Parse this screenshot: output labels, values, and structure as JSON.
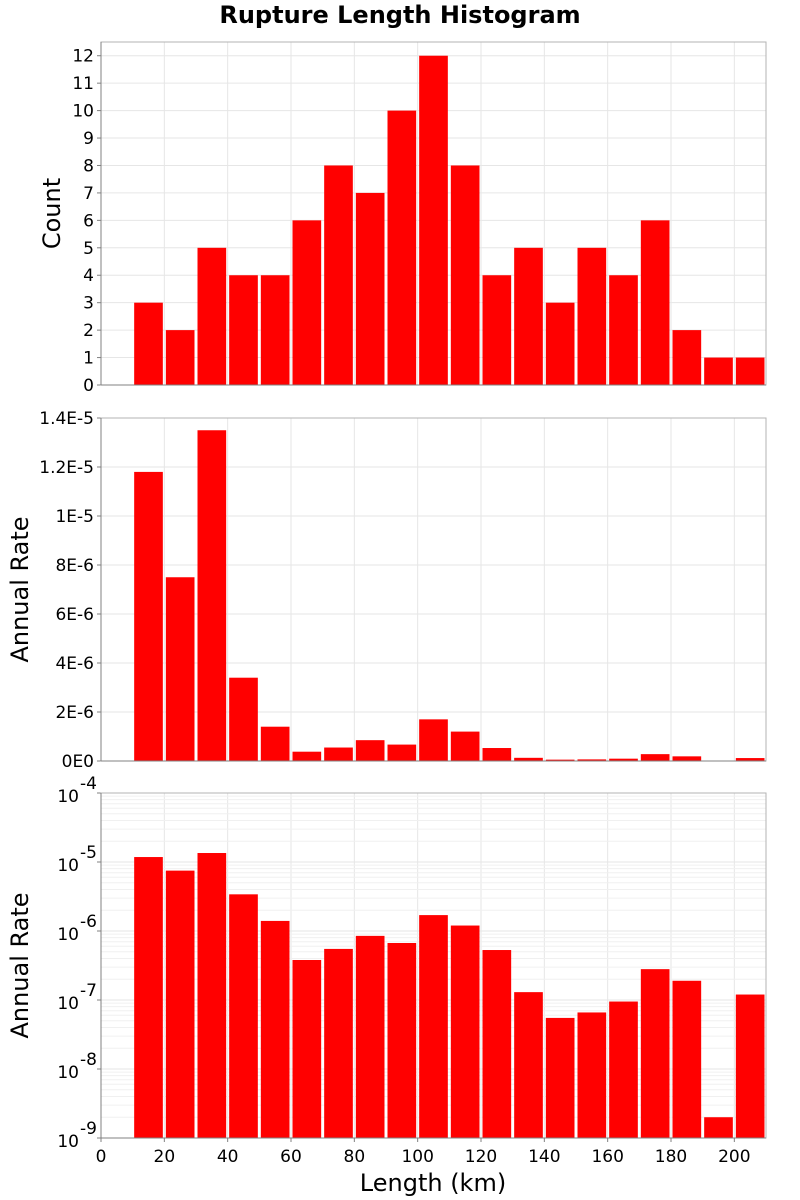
{
  "chart_data": [
    {
      "type": "bar",
      "title": "Rupture Length Histogram",
      "xlabel": "",
      "ylabel": "Count",
      "bin_width": 10,
      "x": [
        15,
        25,
        35,
        45,
        55,
        65,
        75,
        85,
        95,
        105,
        115,
        125,
        135,
        145,
        155,
        165,
        175,
        185,
        195,
        205
      ],
      "values": [
        3,
        2,
        5,
        4,
        4,
        6,
        8,
        7,
        10,
        12,
        8,
        4,
        5,
        3,
        5,
        4,
        6,
        2,
        1,
        1
      ],
      "xlim": [
        0,
        210
      ],
      "ylim": [
        0,
        12.5
      ],
      "yticks": [
        0,
        1,
        2,
        3,
        4,
        5,
        6,
        7,
        8,
        9,
        10,
        11,
        12
      ],
      "ytick_labels": [
        "0",
        "1",
        "2",
        "3",
        "4",
        "5",
        "6",
        "7",
        "8",
        "9",
        "10",
        "11",
        "12"
      ],
      "yscale": "linear",
      "grid": true,
      "color": "#ff0000"
    },
    {
      "type": "bar",
      "xlabel": "",
      "ylabel": "Annual Rate",
      "bin_width": 10,
      "x": [
        15,
        25,
        35,
        45,
        55,
        65,
        75,
        85,
        95,
        105,
        115,
        125,
        135,
        145,
        155,
        165,
        175,
        185,
        195,
        205
      ],
      "values": [
        1.18e-05,
        7.5e-06,
        1.35e-05,
        3.4e-06,
        1.4e-06,
        3.8e-07,
        5.5e-07,
        8.5e-07,
        6.7e-07,
        1.7e-06,
        1.2e-06,
        5.3e-07,
        1.3e-07,
        5.5e-08,
        6.6e-08,
        9.5e-08,
        2.8e-07,
        1.9e-07,
        2e-09,
        1.2e-07
      ],
      "xlim": [
        0,
        210
      ],
      "ylim": [
        0,
        1.4e-05
      ],
      "yticks": [
        0,
        2e-06,
        4e-06,
        6e-06,
        8e-06,
        1e-05,
        1.2e-05,
        1.4e-05
      ],
      "ytick_labels": [
        "0E0",
        "2E-6",
        "4E-6",
        "6E-6",
        "8E-6",
        "1E-5",
        "1.2E-5",
        "1.4E-5"
      ],
      "yscale": "linear",
      "grid": true,
      "color": "#ff0000"
    },
    {
      "type": "bar",
      "xlabel": "Length (km)",
      "ylabel": "Annual Rate",
      "bin_width": 10,
      "x": [
        15,
        25,
        35,
        45,
        55,
        65,
        75,
        85,
        95,
        105,
        115,
        125,
        135,
        145,
        155,
        165,
        175,
        185,
        195,
        205
      ],
      "values": [
        1.18e-05,
        7.5e-06,
        1.35e-05,
        3.4e-06,
        1.4e-06,
        3.8e-07,
        5.5e-07,
        8.5e-07,
        6.7e-07,
        1.7e-06,
        1.2e-06,
        5.3e-07,
        1.3e-07,
        5.5e-08,
        6.6e-08,
        9.5e-08,
        2.8e-07,
        1.9e-07,
        2e-09,
        1.2e-07
      ],
      "xlim": [
        0,
        210
      ],
      "xticks": [
        0,
        20,
        40,
        60,
        80,
        100,
        120,
        140,
        160,
        180,
        200
      ],
      "xtick_labels": [
        "0",
        "20",
        "40",
        "60",
        "80",
        "100",
        "120",
        "140",
        "160",
        "180",
        "200"
      ],
      "ylim": [
        1e-09,
        0.0001
      ],
      "yticks": [
        1e-09,
        1e-08,
        1e-07,
        1e-06,
        1e-05,
        0.0001
      ],
      "ytick_bases": [
        "10",
        "10",
        "10",
        "10",
        "10",
        "10"
      ],
      "ytick_exponents": [
        "-9",
        "-8",
        "-7",
        "-6",
        "-5",
        "-4"
      ],
      "yscale": "log",
      "grid": true,
      "color": "#ff0000"
    }
  ]
}
